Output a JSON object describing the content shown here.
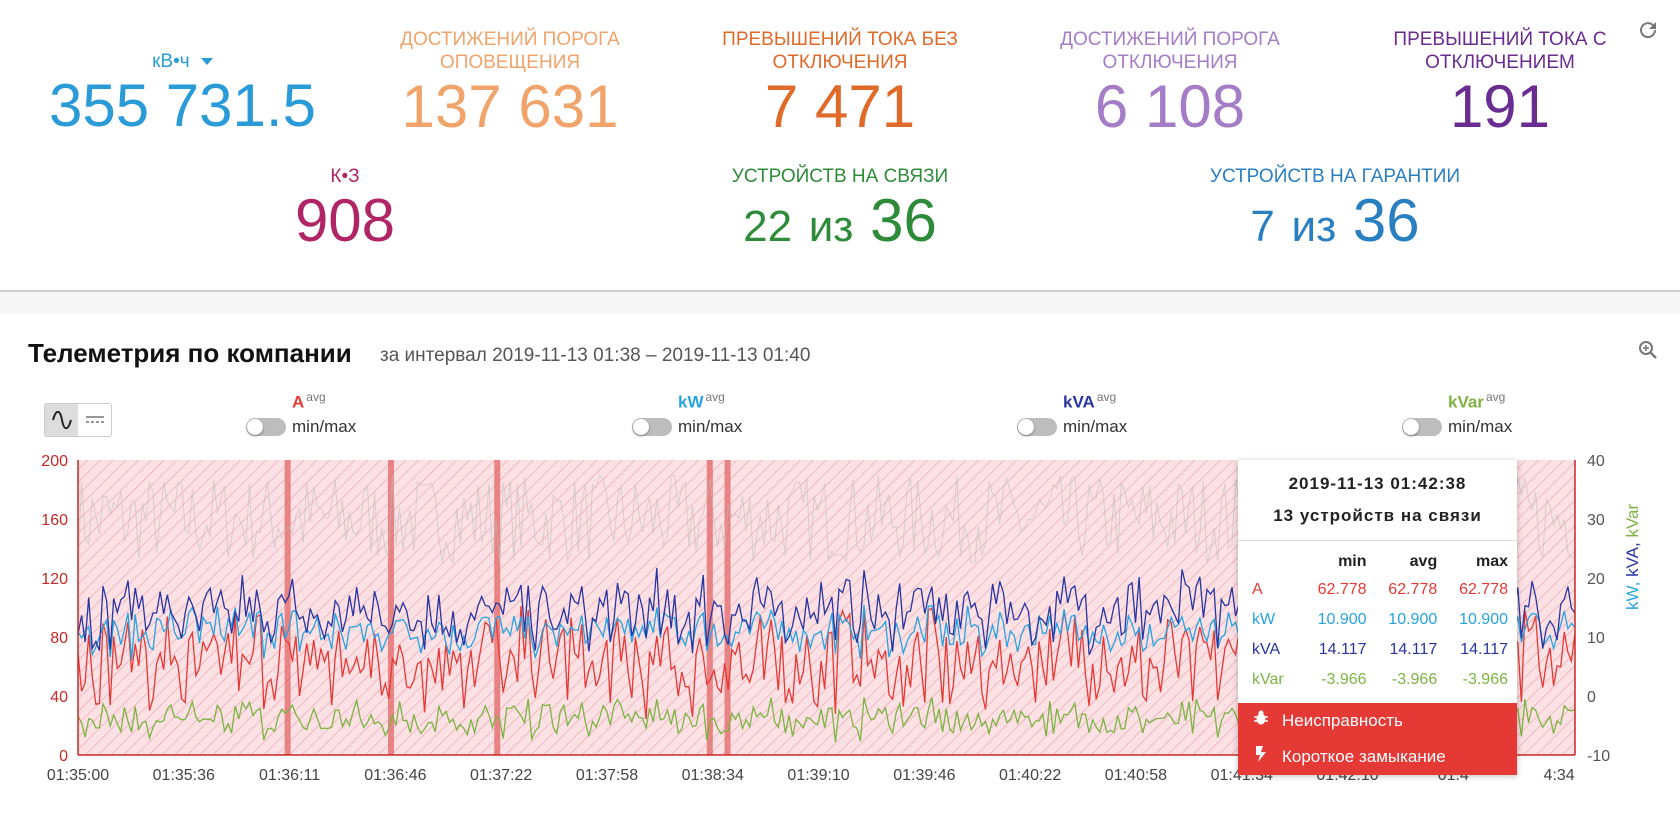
{
  "stats": {
    "energy": {
      "unit": "кВ•ч",
      "value": "355 731.5",
      "color": "#2b9bd8"
    },
    "alert_threshold": {
      "label_1": "ДОСТИЖЕНИЙ ПОРОГА",
      "label_2": "ОПОВЕЩЕНИЯ",
      "value": "137 631",
      "color": "#f0a46b"
    },
    "overcurrent_no_trip": {
      "label_1": "ПРЕВЫШЕНИЙ ТОКА БЕЗ",
      "label_2": "ОТКЛЮЧЕНИЯ",
      "value": "7 471",
      "color": "#e06a2a"
    },
    "trip_threshold": {
      "label_1": "ДОСТИЖЕНИЙ ПОРОГА",
      "label_2": "ОТКЛЮЧЕНИЯ",
      "value": "6 108",
      "color": "#a57cc6"
    },
    "overcurrent_trip": {
      "label_1": "ПРЕВЫШЕНИЙ ТОКА С",
      "label_2": "ОТКЛЮЧЕНИЕМ",
      "value": "191",
      "color": "#6a2c91"
    },
    "short_circuit": {
      "label": "К•З",
      "value": "908",
      "color": "#b02565"
    },
    "online": {
      "label": "УСТРОЙСТВ НА СВЯЗИ",
      "count": "22",
      "of": "из",
      "total": "36",
      "color": "#2e8b3a"
    },
    "warranty": {
      "label": "УСТРОЙСТВ НА ГАРАНТИИ",
      "count": "7",
      "of": "из",
      "total": "36",
      "color": "#2a7fc0"
    }
  },
  "telemetry": {
    "title": "Телеметрия по компании",
    "subtitle": "за интервал 2019-11-13 01:38 – 2019-11-13 01:40"
  },
  "legend": [
    {
      "name": "A",
      "sup": "avg",
      "toggle": "min/max",
      "color": "#e53935"
    },
    {
      "name": "kW",
      "sup": "avg",
      "toggle": "min/max",
      "color": "#29a3df"
    },
    {
      "name": "kVA",
      "sup": "avg",
      "toggle": "min/max",
      "color": "#2835a0"
    },
    {
      "name": "kVar",
      "sup": "avg",
      "toggle": "min/max",
      "color": "#7cb342"
    }
  ],
  "right_axis_label": [
    "kW,",
    "kVA,",
    "kVar"
  ],
  "tooltip": {
    "time": "2019-11-13 01:42:38",
    "devices": "13 устройств на связи",
    "headers": [
      "min",
      "avg",
      "max"
    ],
    "rows": [
      {
        "name": "A",
        "min": "62.778",
        "avg": "62.778",
        "max": "62.778",
        "color": "#e53935"
      },
      {
        "name": "kW",
        "min": "10.900",
        "avg": "10.900",
        "max": "10.900",
        "color": "#29a3df"
      },
      {
        "name": "kVA",
        "min": "14.117",
        "avg": "14.117",
        "max": "14.117",
        "color": "#2835a0"
      },
      {
        "name": "kVar",
        "min": "-3.966",
        "avg": "-3.966",
        "max": "-3.966",
        "color": "#7cb342"
      }
    ],
    "events": [
      "Неисправность",
      "Короткое замыкание"
    ]
  },
  "chart_data": {
    "type": "line",
    "x_ticks": [
      "01:35:00",
      "01:35:36",
      "01:36:11",
      "01:36:46",
      "01:37:22",
      "01:37:58",
      "01:38:34",
      "01:39:10",
      "01:39:46",
      "01:40:22",
      "01:40:58",
      "01:41:34",
      "01:42:10",
      "01:4",
      "4:34"
    ],
    "y_left_ticks": [
      "0",
      "40",
      "80",
      "120",
      "160",
      "200"
    ],
    "y_left_range": [
      0,
      200
    ],
    "y_right_ticks": [
      "-10",
      "0",
      "10",
      "20",
      "30",
      "40"
    ],
    "y_right_range": [
      -10,
      40
    ],
    "series": [
      {
        "name": "A",
        "color": "#e53935",
        "axis": "left",
        "mean": 62.778,
        "amplitude": 18
      },
      {
        "name": "kW",
        "color": "#29a3df",
        "axis": "right",
        "mean": 10.9,
        "amplitude": 2.5
      },
      {
        "name": "kVA",
        "color": "#2835a0",
        "axis": "right",
        "mean": 14.117,
        "amplitude": 4
      },
      {
        "name": "kVar",
        "color": "#7cb342",
        "axis": "right",
        "mean": -3.966,
        "amplitude": 2
      }
    ],
    "event_markers": [
      "01:36:11",
      "01:36:46",
      "01:37:22",
      "01:38:34",
      "01:38:40",
      "01:42:38"
    ],
    "grid": true
  }
}
